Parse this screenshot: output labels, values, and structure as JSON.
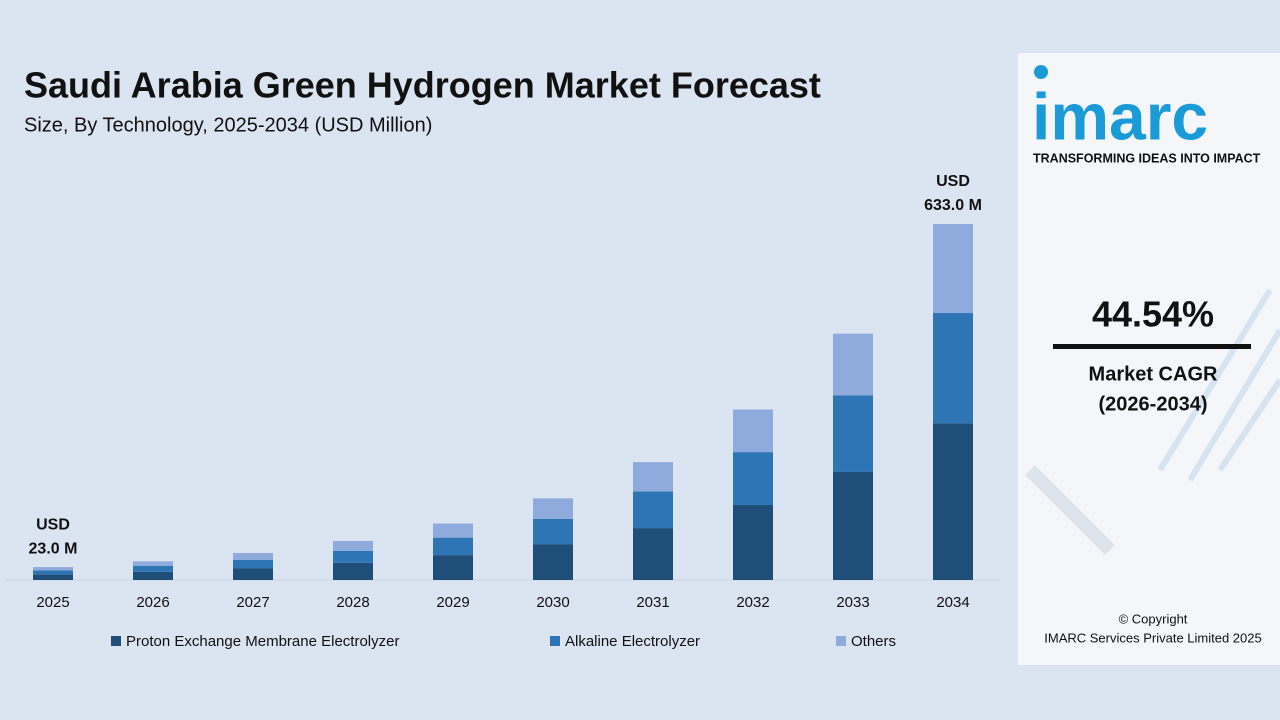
{
  "chart_data": {
    "type": "stacked_bar",
    "title": "Saudi Arabia Green Hydrogen Market Forecast",
    "subtitle": "Size, By Technology, 2025-2034 (USD Million)",
    "categories": [
      "2025",
      "2026",
      "2027",
      "2028",
      "2029",
      "2030",
      "2031",
      "2032",
      "2033",
      "2034"
    ],
    "series": [
      {
        "name": "Proton Exchange Membrane Electrolyzer",
        "color": "#1f4e79",
        "values": [
          10.1,
          14.6,
          21.1,
          30.5,
          44.2,
          63.8,
          92.3,
          133.4,
          192.7,
          278.5
        ]
      },
      {
        "name": "Alkaline Electrolyzer",
        "color": "#2e75b6",
        "values": [
          7.1,
          10.3,
          14.9,
          21.5,
          31.1,
          45.0,
          65.0,
          94.0,
          135.8,
          196.2
        ]
      },
      {
        "name": "Others",
        "color": "#8faadc",
        "values": [
          5.8,
          8.3,
          12.0,
          17.4,
          25.1,
          36.3,
          52.4,
          75.7,
          109.5,
          158.3
        ]
      }
    ],
    "annotations": [
      [
        "USD",
        "23.0 M"
      ],
      [
        "USD",
        "633.0 M"
      ]
    ]
  },
  "side_panel": {
    "logo": "imarc",
    "tagline": "TRANSFORMING IDEAS INTO IMPACT",
    "cagr": "44.54%",
    "cagr_label": "Market CAGR",
    "cagr_period": "(2026-2034)",
    "copyright": "© Copyright",
    "company": "IMARC Services Private Limited 2025"
  }
}
